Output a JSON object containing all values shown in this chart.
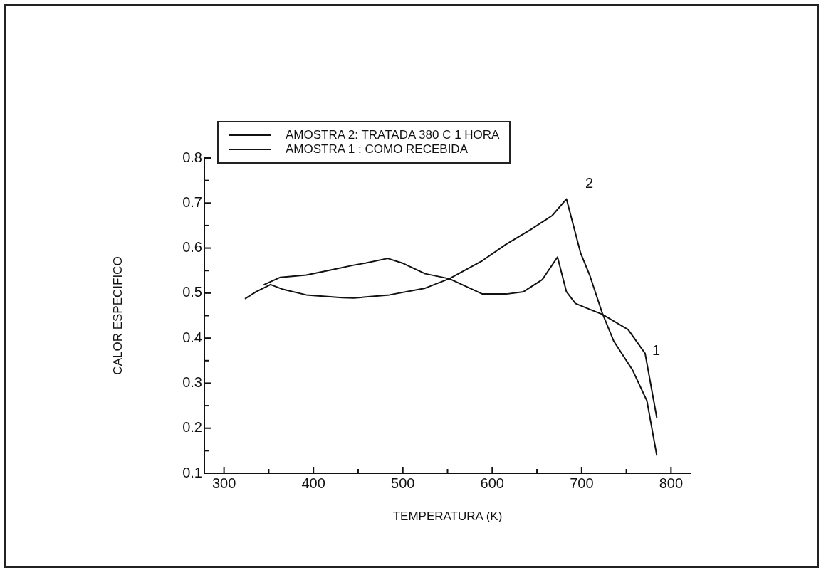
{
  "chart_data": {
    "type": "line",
    "xlabel": "TEMPERATURA (K)",
    "ylabel": "CALOR ESPECIFICO",
    "xlim": [
      278,
      822
    ],
    "xticks": [
      300,
      {
        "value": 350,
        "label": null
      },
      400,
      {
        "value": 450,
        "label": null
      },
      500,
      {
        "value": 550,
        "label": null
      },
      600,
      {
        "value": 650,
        "label": null
      },
      700,
      {
        "value": 750,
        "label": null
      },
      800
    ],
    "ylim": [
      0.1,
      0.8
    ],
    "yticks": [
      0.1,
      {
        "value": 0.15,
        "label": null
      },
      0.2,
      {
        "value": 0.25,
        "label": null
      },
      0.3,
      {
        "value": 0.35,
        "label": null
      },
      0.4,
      {
        "value": 0.45,
        "label": null
      },
      0.5,
      {
        "value": 0.55,
        "label": null
      },
      0.6,
      {
        "value": 0.65,
        "label": null
      },
      0.7,
      {
        "value": 0.75,
        "label": null
      },
      0.8
    ],
    "grid": false,
    "legend": "top left",
    "marker": "none",
    "line_style": "solid",
    "series": [
      {
        "name": "AMOSTRA 2: TRATADA 380 C 1 HORA",
        "color": "#111111",
        "x": [
          324,
          336,
          352,
          365,
          392,
          432,
          445,
          485,
          525,
          552,
          589,
          616,
          643,
          667,
          683,
          699,
          709,
          723,
          736,
          757,
          773,
          784
        ],
        "values": [
          0.488,
          0.503,
          0.519,
          0.509,
          0.496,
          0.49,
          0.489,
          0.496,
          0.511,
          0.532,
          0.572,
          0.609,
          0.641,
          0.672,
          0.709,
          0.588,
          0.54,
          0.456,
          0.393,
          0.329,
          0.261,
          0.14
        ]
      },
      {
        "name": "AMOSTRA 1 : COMO RECEBIDA",
        "color": "#111111",
        "x": [
          345,
          363,
          392,
          419,
          445,
          459,
          483,
          499,
          525,
          552,
          589,
          616,
          635,
          656,
          673,
          683,
          693,
          709,
          723,
          752,
          771,
          784
        ],
        "values": [
          0.519,
          0.535,
          0.54,
          0.551,
          0.562,
          0.567,
          0.577,
          0.567,
          0.543,
          0.532,
          0.498,
          0.498,
          0.503,
          0.53,
          0.58,
          0.503,
          0.477,
          0.464,
          0.453,
          0.419,
          0.366,
          0.224
        ]
      }
    ],
    "annotations": [
      "2",
      "1"
    ]
  }
}
